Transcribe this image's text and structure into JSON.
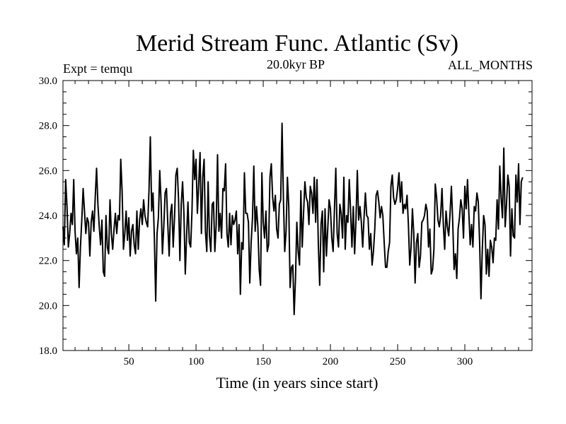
{
  "chart_data": {
    "type": "line",
    "title": "Merid Stream Func. Atlantic (Sv)",
    "subtitle_left": "Expt = temqu",
    "subtitle_center": "20.0kyr BP",
    "subtitle_right": "ALL_MONTHS",
    "xlabel": "Time (in years since start)",
    "ylabel": "",
    "xlim": [
      1,
      350
    ],
    "ylim": [
      18.0,
      30.0
    ],
    "x_ticks": [
      50,
      100,
      150,
      200,
      250,
      300
    ],
    "y_ticks": [
      18.0,
      20.0,
      22.0,
      24.0,
      26.0,
      28.0,
      30.0
    ],
    "x_tick_labels": [
      "50",
      "100",
      "150",
      "200",
      "250",
      "300"
    ],
    "y_tick_labels": [
      "18.0",
      "20.0",
      "22.0",
      "24.0",
      "26.0",
      "28.0",
      "30.0"
    ],
    "grid": false,
    "line_color": "#000000",
    "series": [
      {
        "name": "Merid Stream Func. Atlantic",
        "x_start": 1,
        "x_step": 1,
        "values": [
          23.5,
          22.7,
          25.6,
          24.4,
          22.6,
          23.2,
          24.1,
          23.6,
          25.6,
          23.3,
          22.3,
          23.0,
          20.8,
          22.6,
          23.8,
          25.2,
          24.2,
          23.2,
          23.9,
          23.7,
          22.2,
          23.7,
          24.2,
          23.3,
          24.8,
          26.1,
          24.5,
          23.5,
          22.7,
          23.8,
          21.5,
          21.3,
          24.0,
          22.6,
          22.3,
          24.7,
          23.2,
          22.5,
          23.4,
          24.1,
          23.2,
          24.0,
          23.8,
          26.5,
          25.1,
          22.5,
          23.2,
          24.2,
          22.9,
          23.9,
          22.2,
          23.3,
          23.6,
          22.7,
          22.3,
          24.2,
          22.5,
          23.8,
          24.3,
          23.6,
          24.7,
          24.0,
          23.7,
          23.5,
          25.1,
          27.5,
          24.2,
          25.0,
          23.0,
          20.2,
          23.2,
          23.9,
          26.0,
          24.6,
          22.3,
          23.5,
          25.0,
          25.2,
          23.6,
          22.2,
          24.1,
          24.5,
          22.6,
          23.9,
          25.8,
          26.1,
          24.7,
          22.0,
          24.5,
          25.5,
          24.1,
          21.4,
          23.1,
          24.6,
          22.8,
          22.6,
          24.2,
          26.9,
          25.6,
          26.5,
          24.1,
          25.4,
          26.8,
          23.2,
          25.7,
          26.5,
          23.3,
          22.4,
          25.5,
          23.1,
          22.4,
          24.5,
          24.6,
          22.4,
          23.6,
          26.7,
          23.3,
          24.1,
          23.0,
          25.2,
          25.1,
          26.3,
          23.2,
          22.6,
          24.1,
          22.7,
          24.0,
          23.6,
          23.8,
          24.2,
          22.3,
          23.6,
          20.5,
          22.8,
          22.5,
          25.9,
          24.1,
          24.1,
          23.7,
          21.0,
          22.8,
          23.9,
          26.2,
          23.3,
          24.4,
          23.5,
          21.6,
          20.9,
          25.9,
          23.7,
          23.0,
          24.2,
          22.4,
          22.7,
          25.7,
          26.3,
          24.8,
          24.2,
          24.9,
          23.4,
          23.0,
          24.5,
          24.7,
          28.1,
          24.8,
          22.4,
          23.3,
          25.7,
          24.4,
          20.8,
          21.7,
          21.8,
          19.6,
          21.2,
          23.7,
          22.4,
          21.8,
          25.1,
          22.6,
          24.1,
          25.5,
          24.8,
          24.6,
          23.6,
          25.3,
          25.0,
          24.1,
          25.7,
          23.7,
          25.6,
          22.7,
          20.9,
          23.6,
          24.2,
          21.5,
          24.3,
          22.2,
          23.4,
          24.7,
          24.3,
          23.0,
          22.4,
          24.3,
          26.1,
          23.2,
          22.6,
          24.5,
          24.1,
          23.0,
          25.7,
          22.5,
          24.0,
          23.7,
          25.6,
          24.2,
          22.6,
          24.4,
          22.3,
          23.8,
          26.0,
          23.8,
          24.4,
          23.7,
          22.6,
          23.9,
          25.0,
          24.0,
          23.9,
          22.5,
          23.2,
          21.8,
          22.4,
          23.4,
          24.9,
          25.1,
          24.6,
          23.9,
          24.4,
          24.0,
          22.8,
          21.7,
          21.7,
          22.4,
          22.8,
          25.3,
          25.8,
          24.8,
          24.5,
          24.7,
          25.2,
          25.9,
          24.6,
          25.5,
          24.1,
          24.5,
          24.3,
          24.9,
          23.6,
          21.8,
          22.6,
          24.3,
          23.2,
          21.0,
          22.8,
          23.2,
          21.7,
          22.2,
          23.7,
          23.8,
          24.0,
          24.5,
          24.2,
          22.6,
          23.4,
          21.4,
          21.6,
          22.5,
          25.4,
          24.8,
          23.8,
          23.5,
          24.0,
          25.2,
          23.6,
          22.5,
          24.2,
          23.5,
          23.1,
          24.1,
          25.3,
          23.7,
          21.6,
          22.3,
          21.2,
          23.4,
          23.9,
          24.7,
          24.3,
          23.0,
          25.3,
          24.3,
          25.6,
          24.1,
          22.7,
          23.6,
          22.6,
          24.4,
          24.2,
          25.0,
          24.6,
          22.8,
          20.3,
          22.5,
          24.0,
          23.6,
          21.4,
          22.5,
          21.3,
          22.9,
          22.6,
          21.9,
          23.0,
          22.9,
          24.7,
          23.4,
          26.2,
          24.8,
          23.9,
          27.0,
          23.5,
          24.5,
          25.8,
          25.3,
          22.2,
          24.3,
          23.1,
          23.0,
          25.8,
          24.6,
          26.3,
          23.6,
          25.5,
          25.7
        ]
      }
    ]
  }
}
